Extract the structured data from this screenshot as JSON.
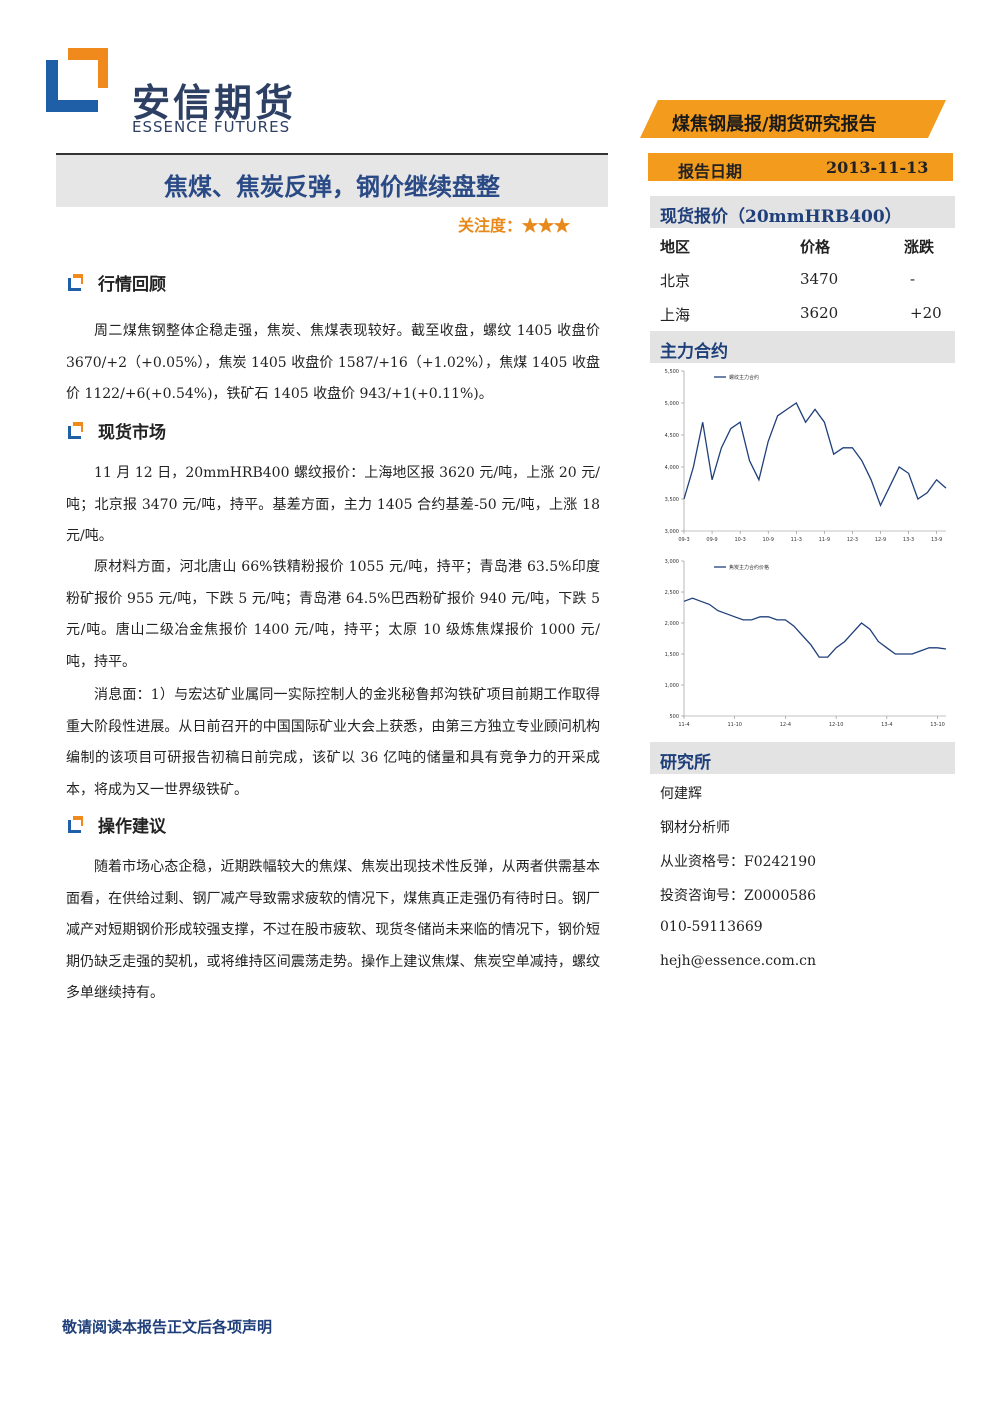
{
  "header": {
    "logo_cn": "安信期货",
    "logo_en": "ESSENCE FUTURES",
    "banner": "煤焦钢晨报/期货研究报告",
    "date_label": "报告日期",
    "date": "2013-11-13"
  },
  "report": {
    "title": "焦煤、焦炭反弹，钢价继续盘整",
    "attention_label": "关注度：",
    "attention_stars": "★★★"
  },
  "sections": [
    {
      "heading": "行情回顾",
      "paragraphs": [
        "周二煤焦钢整体企稳走强，焦炭、焦煤表现较好。截至收盘，螺纹 1405 收盘价 3670/+2（+0.05%），焦炭 1405 收盘价 1587/+16（+1.02%），焦煤 1405 收盘价 1122/+6(+0.54%)，铁矿石 1405 收盘价 943/+1(+0.11%)。"
      ]
    },
    {
      "heading": "现货市场",
      "paragraphs": [
        "11 月 12 日，20mmHRB400 螺纹报价：上海地区报 3620 元/吨，上涨 20 元/吨；北京报 3470 元/吨，持平。基差方面，主力 1405 合约基差-50 元/吨，上涨 18 元/吨。",
        "原材料方面，河北唐山 66%铁精粉报价 1055 元/吨，持平；青岛港 63.5%印度粉矿报价 955 元/吨，下跌 5 元/吨；青岛港 64.5%巴西粉矿报价 940 元/吨，下跌 5 元/吨。唐山二级冶金焦报价 1400 元/吨，持平；太原 10 级炼焦煤报价 1000 元/吨，持平。",
        "消息面：1）与宏达矿业属同一实际控制人的金兆秘鲁邦沟铁矿项目前期工作取得重大阶段性进展。从日前召开的中国国际矿业大会上获悉，由第三方独立专业顾问机构编制的该项目可研报告初稿日前完成，该矿以 36 亿吨的储量和具有竞争力的开采成本，将成为又一世界级铁矿。"
      ]
    },
    {
      "heading": "操作建议",
      "paragraphs": [
        "随着市场心态企稳，近期跌幅较大的焦煤、焦炭出现技术性反弹，从两者供需基本面看，在供给过剩、钢厂减产导致需求疲软的情况下，煤焦真正走强仍有待时日。钢厂减产对短期钢价形成较强支撑，不过在股市疲软、现货冬储尚未来临的情况下，钢价短期仍缺乏走强的契机，或将维持区间震荡走势。操作上建议焦煤、焦炭空单减持，螺纹多单继续持有。"
      ]
    }
  ],
  "sidebar": {
    "spot_heading": "现货报价（20mmHRB400）",
    "spot_table": {
      "columns": [
        "地区",
        "价格",
        "涨跌"
      ],
      "rows": [
        [
          "北京",
          "3470",
          "-"
        ],
        [
          "上海",
          "3620",
          "+20"
        ]
      ]
    },
    "contracts_heading": "主力合约",
    "institute_heading": "研究所",
    "analyst": [
      "何建辉",
      "钢材分析师",
      "从业资格号：F0242190",
      "投资咨询号：Z0000586",
      "010-59113669",
      "hejh@essence.com.cn"
    ]
  },
  "chart_data": [
    {
      "type": "line",
      "categories": [
        "09-3",
        null,
        null,
        "09-9",
        null,
        null,
        "10-3",
        null,
        null,
        "10-9",
        null,
        null,
        "11-3",
        null,
        null,
        "11-9",
        null,
        null,
        "12-3",
        null,
        null,
        "12-9",
        null,
        null,
        "13-3",
        null,
        null,
        "13-9",
        null
      ],
      "series": [
        {
          "name": "螺纹主力合约",
          "color": "#1f3f7a",
          "values": [
            3500,
            4000,
            4700,
            3800,
            4300,
            4600,
            4700,
            4100,
            3800,
            4400,
            4800,
            4900,
            5000,
            4700,
            4900,
            4700,
            4200,
            4300,
            4300,
            4100,
            3800,
            3400,
            3700,
            4000,
            3900,
            3500,
            3600,
            3800,
            3670
          ]
        }
      ],
      "ylim": [
        3000,
        5500
      ],
      "yticks": [
        {
          "value": 3000,
          "label": "3,000"
        },
        {
          "value": 3500,
          "label": "3,500"
        },
        {
          "value": 4000,
          "label": "4,000"
        },
        {
          "value": 4500,
          "label": "4,500"
        },
        {
          "value": 5000,
          "label": "5,000"
        },
        {
          "value": 5500,
          "label": "5,500"
        }
      ],
      "grid": false
    },
    {
      "type": "line",
      "categories": [
        "11-4",
        null,
        null,
        null,
        null,
        null,
        "11-10",
        null,
        null,
        null,
        null,
        null,
        "12-4",
        null,
        null,
        null,
        null,
        null,
        "12-10",
        null,
        null,
        null,
        null,
        null,
        "13-4",
        null,
        null,
        null,
        null,
        null,
        "13-10",
        null
      ],
      "series": [
        {
          "name": "焦炭主力合约价格",
          "color": "#1f3f7a",
          "values": [
            2350,
            2400,
            2350,
            2300,
            2200,
            2150,
            2100,
            2050,
            2050,
            2100,
            2100,
            2050,
            2050,
            1950,
            1800,
            1650,
            1450,
            1450,
            1600,
            1700,
            1850,
            2000,
            1900,
            1700,
            1600,
            1500,
            1500,
            1500,
            1550,
            1600,
            1600,
            1580
          ]
        }
      ],
      "ylim": [
        500,
        3000
      ],
      "yticks": [
        500,
        {
          "value": 1000,
          "label": "1,000"
        },
        {
          "value": 1500,
          "label": "1,500"
        },
        {
          "value": 2000,
          "label": "2,000"
        },
        {
          "value": 2500,
          "label": "2,500"
        },
        {
          "value": 3000,
          "label": "3,000"
        }
      ],
      "grid": false
    }
  ],
  "footer": "敬请阅读本报告正文后各项声明"
}
